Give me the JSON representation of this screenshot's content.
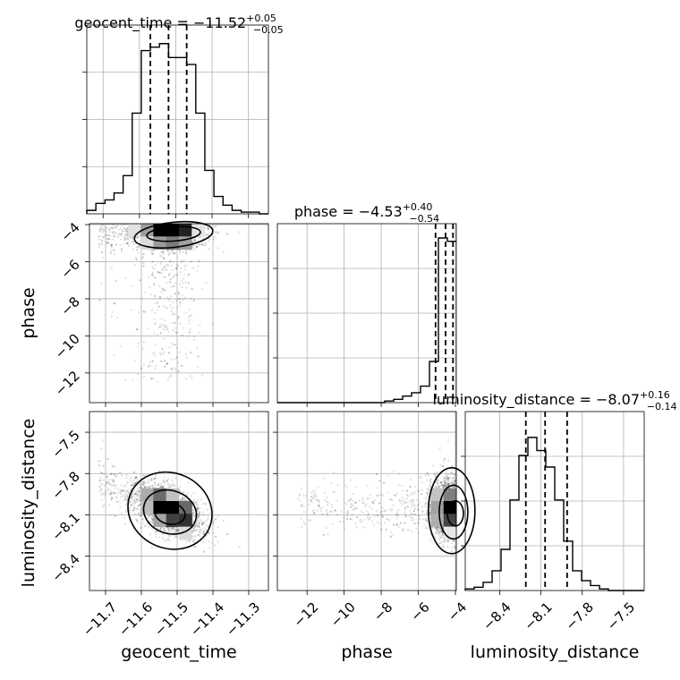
{
  "chart_data": {
    "type": "corner",
    "parameters": [
      "geocent_time",
      "phase",
      "luminosity_distance"
    ],
    "titles": [
      {
        "text": "geocent_time = −11.52",
        "plus": "+0.05",
        "minus": "−0.05"
      },
      {
        "text": "phase = −4.53",
        "plus": "+0.40",
        "minus": "−0.54"
      },
      {
        "text": "luminosity_distance = −8.07",
        "plus": "+0.16",
        "minus": "−0.14"
      }
    ],
    "ranges": {
      "geocent_time": [
        -11.745,
        -11.245
      ],
      "phase": [
        -13.6,
        -3.95
      ],
      "luminosity_distance": [
        -8.65,
        -7.35
      ]
    },
    "ticks": {
      "geocent_time": {
        "values": [
          -11.7,
          -11.6,
          -11.5,
          -11.4,
          -11.3
        ],
        "labels": [
          "−11.7",
          "−11.6",
          "−11.5",
          "−11.4",
          "−11.3"
        ]
      },
      "phase": {
        "values": [
          -12,
          -10,
          -8,
          -6,
          -4
        ],
        "labels": [
          "−12",
          "−10",
          "−8",
          "−6",
          "−4"
        ]
      },
      "luminosity_distance": {
        "values": [
          -8.4,
          -8.1,
          -7.8,
          -7.5
        ],
        "labels": [
          "−8.4",
          "−8.1",
          "−7.8",
          "−7.5"
        ]
      }
    },
    "quantiles": {
      "geocent_time": [
        -11.57,
        -11.52,
        -11.47
      ],
      "phase": [
        -5.07,
        -4.53,
        -4.13
      ],
      "luminosity_distance": [
        -8.21,
        -8.07,
        -7.91
      ]
    },
    "histograms": {
      "geocent_time": [
        0.02,
        0.06,
        0.08,
        0.12,
        0.22,
        0.58,
        0.94,
        0.96,
        0.98,
        0.9,
        0.9,
        0.86,
        0.58,
        0.25,
        0.1,
        0.05,
        0.02,
        0.01,
        0.01,
        0.0
      ],
      "phase": [
        0.0,
        0.0,
        0.0,
        0.0,
        0.0,
        0.0,
        0.0,
        0.0,
        0.0,
        0.0,
        0.0,
        0.0,
        0.01,
        0.02,
        0.04,
        0.06,
        0.1,
        0.25,
        1.0,
        0.98
      ],
      "luminosity_distance": [
        0.01,
        0.02,
        0.05,
        0.12,
        0.25,
        0.55,
        0.82,
        0.93,
        0.85,
        0.75,
        0.55,
        0.3,
        0.12,
        0.06,
        0.03,
        0.01,
        0.0,
        0.0,
        0.0,
        0.0
      ]
    },
    "grid": true
  }
}
